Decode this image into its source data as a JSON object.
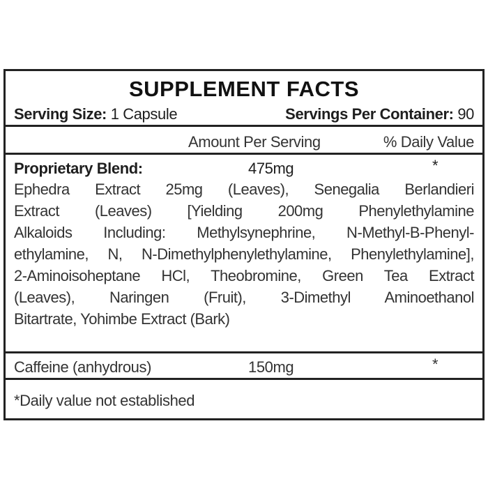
{
  "title": "SUPPLEMENT FACTS",
  "serving": {
    "size_label": "Serving Size:",
    "size_value": "1 Capsule",
    "per_container_label": "Servings Per Container:",
    "per_container_value": "90"
  },
  "columns": {
    "amount": "Amount Per Serving",
    "daily_value": "% Daily Value"
  },
  "rows": [
    {
      "name": "Proprietary Blend:",
      "amount": "475mg",
      "dv": "*",
      "ingredients_lines": [
        "Ephedra Extract 25mg (Leaves), Senegalia Berlandieri",
        "Extract (Leaves) [Yielding 200mg Phenylethylamine",
        "Alkaloids Including: Methylsynephrine, N-Methyl-B-Phenyl-",
        "ethylamine, N, N-Dimethylphenylethylamine, Phenylethylamine],",
        "2-Aminoisoheptane HCl, Theobromine, Green Tea Extract",
        "(Leaves), Naringen (Fruit), 3-Dimethyl Aminoethanol",
        "Bitartrate, Yohimbe Extract (Bark)"
      ]
    },
    {
      "name": "Caffeine (anhydrous)",
      "amount": "150mg",
      "dv": "*"
    }
  ],
  "footnote": "*Daily value not established"
}
